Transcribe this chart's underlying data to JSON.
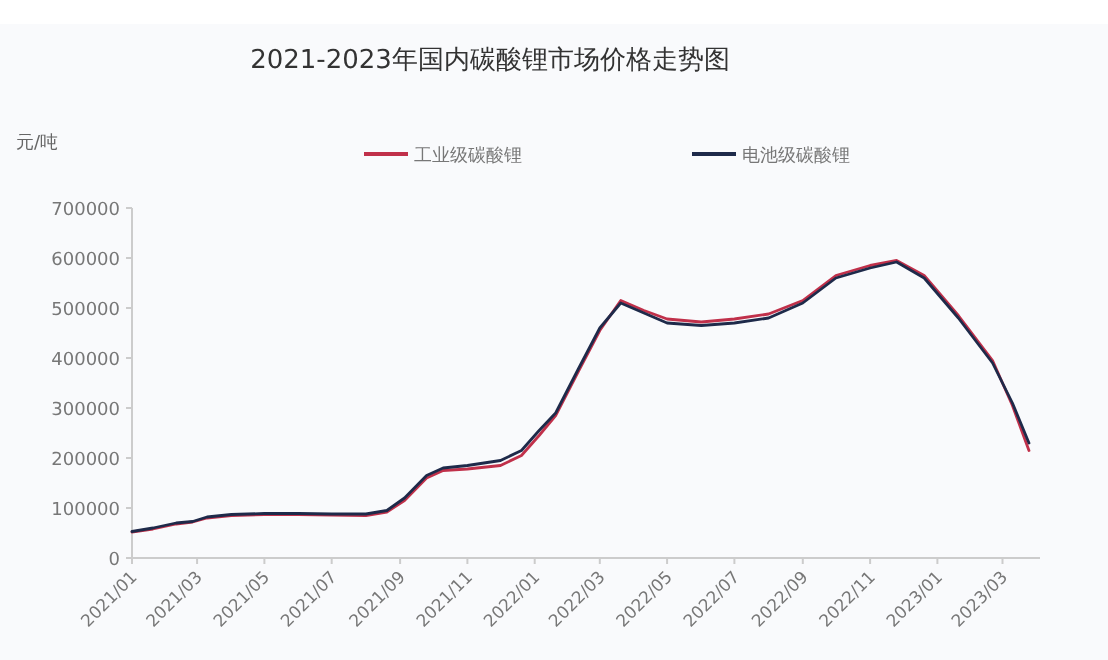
{
  "chart_data": {
    "type": "line",
    "title": "2021-2023年国内碳酸锂市场价格走势图",
    "ylabel": "元/吨",
    "legend": "top",
    "marker": "none",
    "line_style": "solid",
    "grid": false,
    "x": [
      "2021-01-01",
      "2021-01-20",
      "2021-02-10",
      "2021-02-25",
      "2021-03-10",
      "2021-04-01",
      "2021-05-01",
      "2021-06-01",
      "2021-07-01",
      "2021-08-01",
      "2021-08-20",
      "2021-09-05",
      "2021-09-25",
      "2021-10-10",
      "2021-11-01",
      "2021-12-01",
      "2021-12-20",
      "2022-01-05",
      "2022-01-20",
      "2022-02-10",
      "2022-03-01",
      "2022-03-20",
      "2022-04-10",
      "2022-05-01",
      "2022-06-01",
      "2022-07-01",
      "2022-08-01",
      "2022-09-01",
      "2022-10-01",
      "2022-11-01",
      "2022-11-25",
      "2022-12-20",
      "2023-01-20",
      "2023-02-20",
      "2023-03-10",
      "2023-03-25"
    ],
    "series": [
      {
        "name": "工业级碳酸锂",
        "color": "#c0304a",
        "values": [
          52000,
          58000,
          68000,
          72000,
          80000,
          85000,
          87000,
          87000,
          86000,
          85000,
          92000,
          115000,
          160000,
          175000,
          178000,
          185000,
          205000,
          245000,
          285000,
          375000,
          455000,
          515000,
          495000,
          478000,
          472000,
          478000,
          488000,
          515000,
          565000,
          585000,
          595000,
          565000,
          485000,
          395000,
          305000,
          215000
        ]
      },
      {
        "name": "电池级碳酸锂",
        "color": "#1e2a4a",
        "values": [
          53000,
          60000,
          70000,
          73000,
          82000,
          87000,
          89000,
          89000,
          88000,
          88000,
          95000,
          120000,
          165000,
          180000,
          185000,
          195000,
          215000,
          255000,
          290000,
          380000,
          460000,
          510000,
          490000,
          470000,
          465000,
          470000,
          480000,
          510000,
          560000,
          580000,
          592000,
          560000,
          480000,
          390000,
          310000,
          230000
        ]
      }
    ],
    "xlim": [
      "2021-01-01",
      "2023-04-04"
    ],
    "xticks": [
      {
        "value": "2021-01",
        "label": "2021/01"
      },
      {
        "value": "2021-03",
        "label": "2021/03"
      },
      {
        "value": "2021-05",
        "label": "2021/05"
      },
      {
        "value": "2021-07",
        "label": "2021/07"
      },
      {
        "value": "2021-09",
        "label": "2021/09"
      },
      {
        "value": "2021-11",
        "label": "2021/11"
      },
      {
        "value": "2022-01",
        "label": "2022/01"
      },
      {
        "value": "2022-03",
        "label": "2022/03"
      },
      {
        "value": "2022-05",
        "label": "2022/05"
      },
      {
        "value": "2022-07",
        "label": "2022/07"
      },
      {
        "value": "2022-09",
        "label": "2022/09"
      },
      {
        "value": "2022-11",
        "label": "2022/11"
      },
      {
        "value": "2023-01",
        "label": "2023/01"
      },
      {
        "value": "2023-03",
        "label": "2023/03"
      }
    ],
    "ylim": [
      0,
      700000
    ],
    "yticks": [
      0,
      100000,
      200000,
      300000,
      400000,
      500000,
      600000,
      700000
    ]
  }
}
